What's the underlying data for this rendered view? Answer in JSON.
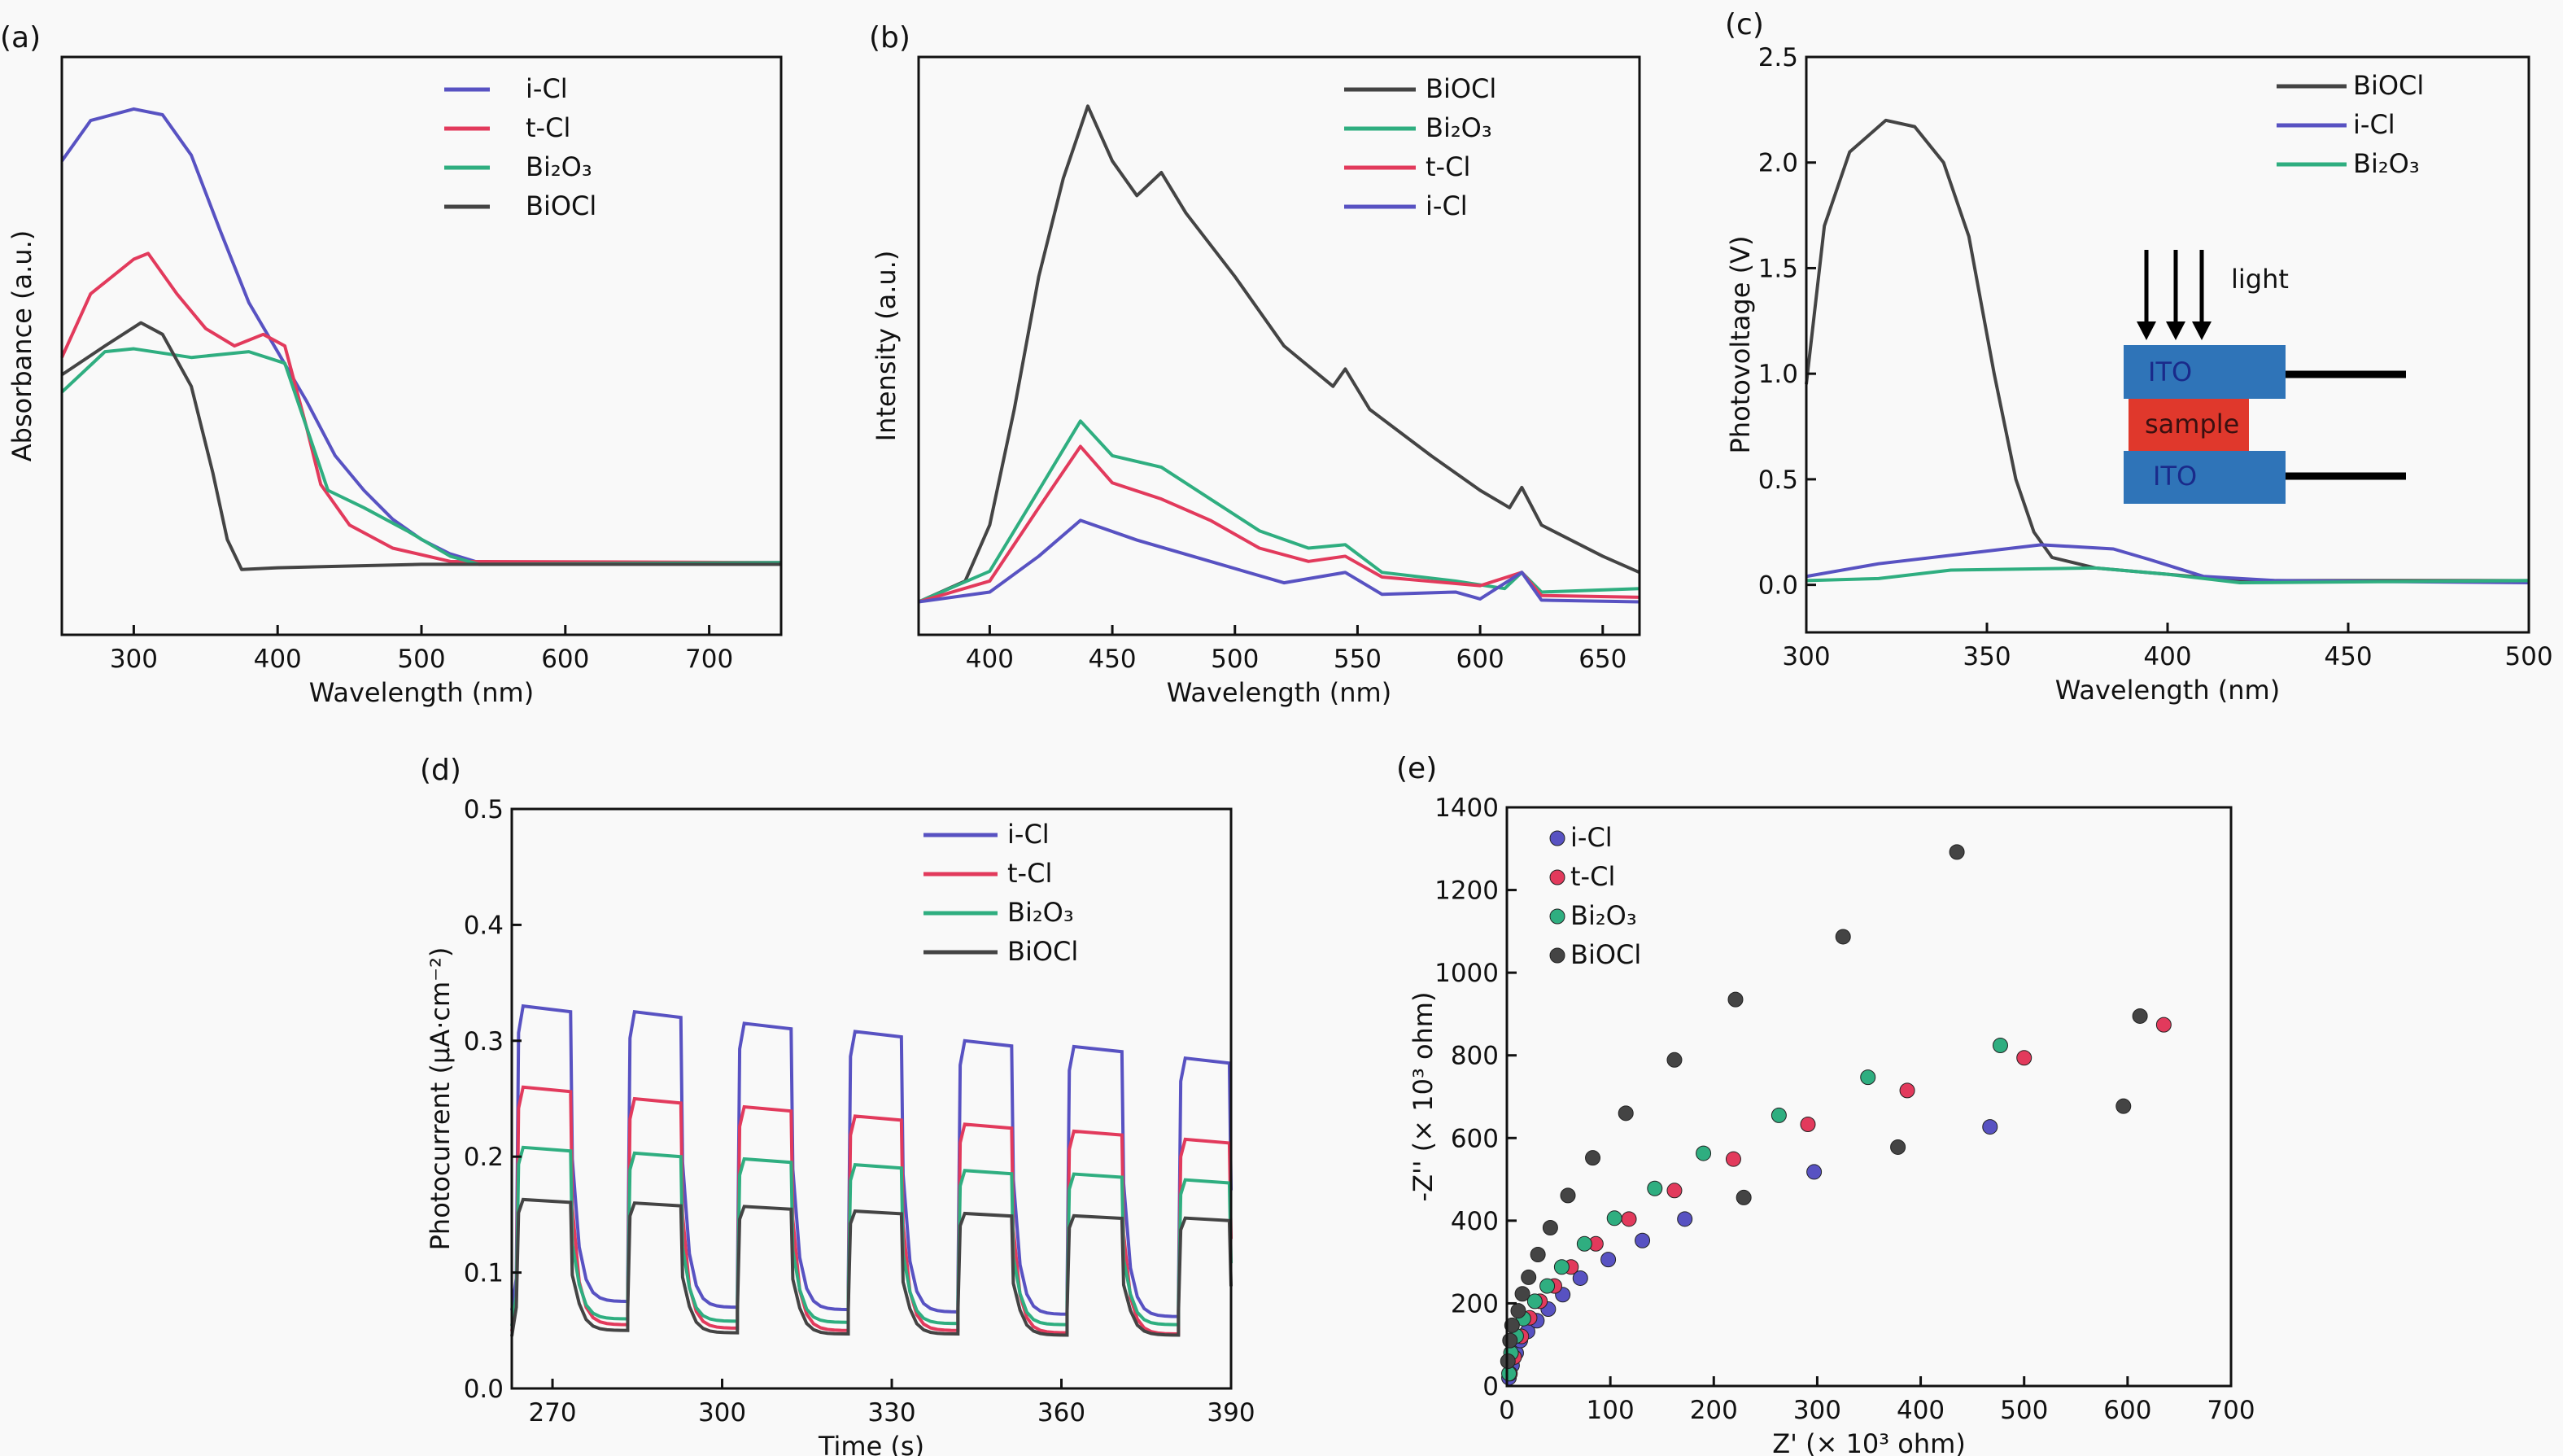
{
  "colors": {
    "i-Cl": "#5852c2",
    "t-Cl": "#e23a5c",
    "Bi2O3": "#2fae80",
    "BiOCl": "#444444"
  },
  "chart_data": [
    {
      "panel": "(a)",
      "type": "line",
      "xlabel": "Wavelength (nm)",
      "ylabel": "Absorbance (a.u.)",
      "xlim": [
        250,
        750
      ],
      "ylim": [
        0,
        1
      ],
      "xticks": [
        300,
        400,
        500,
        600,
        700
      ],
      "yticks": [],
      "legend_position": "top-center",
      "series": [
        {
          "name": "i-Cl",
          "key": "i-Cl",
          "x": [
            250,
            270,
            300,
            320,
            340,
            360,
            380,
            400,
            420,
            440,
            460,
            480,
            500,
            520,
            540,
            750
          ],
          "y": [
            0.82,
            0.89,
            0.91,
            0.9,
            0.83,
            0.7,
            0.575,
            0.49,
            0.405,
            0.31,
            0.25,
            0.2,
            0.165,
            0.14,
            0.125,
            0.125
          ]
        },
        {
          "name": "t-Cl",
          "key": "t-Cl",
          "x": [
            250,
            270,
            300,
            310,
            330,
            350,
            370,
            390,
            405,
            420,
            430,
            450,
            480,
            520,
            750
          ],
          "y": [
            0.48,
            0.59,
            0.65,
            0.66,
            0.59,
            0.53,
            0.5,
            0.52,
            0.5,
            0.36,
            0.26,
            0.19,
            0.15,
            0.127,
            0.125
          ]
        },
        {
          "name": "Bi₂O₃",
          "key": "Bi2O3",
          "x": [
            250,
            280,
            300,
            340,
            380,
            405,
            420,
            435,
            460,
            490,
            520,
            540,
            750
          ],
          "y": [
            0.42,
            0.49,
            0.495,
            0.48,
            0.49,
            0.47,
            0.36,
            0.25,
            0.22,
            0.18,
            0.136,
            0.122,
            0.125
          ]
        },
        {
          "name": "BiOCl",
          "key": "BiOCl",
          "x": [
            250,
            280,
            305,
            320,
            340,
            355,
            365,
            375,
            400,
            500,
            750
          ],
          "y": [
            0.45,
            0.5,
            0.54,
            0.52,
            0.43,
            0.28,
            0.165,
            0.113,
            0.116,
            0.122,
            0.122
          ]
        }
      ]
    },
    {
      "panel": "(b)",
      "type": "line",
      "xlabel": "Wavelength (nm)",
      "ylabel": "Intensity (a.u.)",
      "xlim": [
        371,
        665
      ],
      "ylim": [
        0,
        1
      ],
      "xticks": [
        400,
        450,
        500,
        550,
        600,
        650
      ],
      "yticks": [],
      "legend_position": "top-right",
      "series": [
        {
          "name": "BiOCl",
          "key": "BiOCl",
          "x": [
            371,
            390,
            400,
            410,
            420,
            430,
            440,
            450,
            460,
            470,
            480,
            500,
            520,
            540,
            545,
            555,
            580,
            600,
            612,
            617,
            625,
            650,
            665
          ],
          "y": [
            0.057,
            0.093,
            0.19,
            0.39,
            0.62,
            0.79,
            0.915,
            0.82,
            0.76,
            0.8,
            0.73,
            0.62,
            0.5,
            0.43,
            0.46,
            0.39,
            0.31,
            0.25,
            0.22,
            0.255,
            0.19,
            0.136,
            0.108
          ]
        },
        {
          "name": "Bi₂O₃",
          "key": "Bi2O3",
          "x": [
            371,
            400,
            420,
            437,
            450,
            470,
            490,
            510,
            530,
            545,
            560,
            590,
            610,
            617,
            625,
            665
          ],
          "y": [
            0.057,
            0.11,
            0.25,
            0.37,
            0.31,
            0.29,
            0.235,
            0.18,
            0.15,
            0.156,
            0.108,
            0.093,
            0.08,
            0.108,
            0.074,
            0.08
          ]
        },
        {
          "name": "t-Cl",
          "key": "t-Cl",
          "x": [
            371,
            400,
            420,
            437,
            450,
            470,
            490,
            510,
            530,
            545,
            560,
            600,
            617,
            625,
            665
          ],
          "y": [
            0.057,
            0.093,
            0.22,
            0.326,
            0.263,
            0.235,
            0.198,
            0.15,
            0.127,
            0.136,
            0.1,
            0.085,
            0.108,
            0.068,
            0.065
          ]
        },
        {
          "name": "i-Cl",
          "key": "i-Cl",
          "x": [
            371,
            400,
            420,
            437,
            460,
            490,
            520,
            545,
            560,
            590,
            600,
            617,
            625,
            665
          ],
          "y": [
            0.057,
            0.074,
            0.136,
            0.198,
            0.164,
            0.127,
            0.09,
            0.108,
            0.07,
            0.074,
            0.062,
            0.108,
            0.06,
            0.057
          ]
        }
      ]
    },
    {
      "panel": "(c)",
      "type": "line",
      "xlabel": "Wavelength (nm)",
      "ylabel": "Photovoltage (V)",
      "xlim": [
        300,
        500
      ],
      "ylim": [
        -0.225,
        2.5
      ],
      "xticks": [
        300,
        350,
        400,
        450,
        500
      ],
      "yticks": [
        0.0,
        0.5,
        1.0,
        1.5,
        2.0,
        2.5
      ],
      "ytick_labels": [
        "0.0",
        "0.5",
        "1.0",
        "1.5",
        "2.0",
        "2.5"
      ],
      "legend_position": "top-right",
      "series": [
        {
          "name": "BiOCl",
          "key": "BiOCl",
          "x": [
            300,
            305,
            312,
            322,
            330,
            338,
            345,
            352,
            358,
            363,
            368,
            380,
            400,
            420,
            500
          ],
          "y": [
            0.95,
            1.7,
            2.05,
            2.2,
            2.17,
            2.0,
            1.65,
            1.0,
            0.5,
            0.25,
            0.13,
            0.08,
            0.05,
            0.02,
            0.02
          ]
        },
        {
          "name": "i-Cl",
          "key": "i-Cl",
          "x": [
            300,
            320,
            350,
            365,
            385,
            395,
            410,
            430,
            500
          ],
          "y": [
            0.04,
            0.1,
            0.16,
            0.19,
            0.17,
            0.12,
            0.04,
            0.02,
            0.01
          ]
        },
        {
          "name": "Bi₂O₃",
          "key": "Bi2O3",
          "x": [
            300,
            320,
            340,
            380,
            400,
            420,
            500
          ],
          "y": [
            0.02,
            0.03,
            0.07,
            0.08,
            0.05,
            0.01,
            0.02
          ]
        }
      ],
      "inset": {
        "light_label": "light",
        "top_electrode": "ITO",
        "sample": "sample",
        "bottom_electrode": "ITO",
        "electrode_color": "#2f74b8",
        "sample_color": "#e0382c"
      }
    },
    {
      "panel": "(d)",
      "type": "line",
      "xlabel": "Time (s)",
      "ylabel": "Photocurrent (μA·cm⁻²)",
      "xlim": [
        262.8,
        390
      ],
      "ylim": [
        0,
        0.5
      ],
      "xticks": [
        270,
        300,
        330,
        360,
        390
      ],
      "yticks": [
        0.0,
        0.1,
        0.2,
        0.3,
        0.4,
        0.5
      ],
      "ytick_labels": [
        "0.0",
        "0.1",
        "0.2",
        "0.3",
        "0.4",
        "0.5"
      ],
      "legend_position": "top-right",
      "light_on": [
        263.6,
        283.3,
        302.7,
        322.3,
        341.7,
        361,
        380.7
      ],
      "light_off": [
        273.5,
        293,
        312.5,
        332,
        351.5,
        371,
        390
      ],
      "series": [
        {
          "name": "i-Cl",
          "key": "i-Cl",
          "on_levels": [
            0.33,
            0.325,
            0.315,
            0.308,
            0.3,
            0.295,
            0.285
          ],
          "off_levels": [
            0.075,
            0.07,
            0.068,
            0.066,
            0.064,
            0.062,
            0.06
          ]
        },
        {
          "name": "t-Cl",
          "key": "t-Cl",
          "on_levels": [
            0.26,
            0.25,
            0.243,
            0.235,
            0.228,
            0.222,
            0.215
          ],
          "off_levels": [
            0.055,
            0.052,
            0.05,
            0.05,
            0.048,
            0.047,
            0.047
          ]
        },
        {
          "name": "Bi₂O₃",
          "key": "Bi2O3",
          "on_levels": [
            0.208,
            0.203,
            0.198,
            0.193,
            0.188,
            0.185,
            0.18
          ],
          "off_levels": [
            0.06,
            0.058,
            0.057,
            0.056,
            0.055,
            0.055,
            0.054
          ]
        },
        {
          "name": "BiOCl",
          "key": "BiOCl",
          "on_levels": [
            0.163,
            0.16,
            0.157,
            0.153,
            0.151,
            0.149,
            0.147
          ],
          "off_levels": [
            0.05,
            0.048,
            0.047,
            0.047,
            0.046,
            0.046,
            0.046
          ]
        }
      ]
    },
    {
      "panel": "(e)",
      "type": "scatter",
      "xlabel": "Z' (× 10³ ohm)",
      "ylabel": "-Z'' (× 10³ ohm)",
      "xlim": [
        0,
        700
      ],
      "ylim": [
        0,
        1400
      ],
      "xticks": [
        0,
        100,
        200,
        300,
        400,
        500,
        600,
        700
      ],
      "yticks": [
        0,
        200,
        400,
        600,
        800,
        1000,
        1200,
        1400
      ],
      "legend_position": "top-left",
      "series": [
        {
          "name": "i-Cl",
          "key": "i-Cl",
          "x": [
            2,
            5,
            9,
            13,
            20,
            29,
            40,
            54,
            71,
            98,
            131,
            172,
            297,
            467
          ],
          "y": [
            20,
            50,
            80,
            110,
            132,
            158,
            186,
            221,
            261,
            306,
            352,
            404,
            518,
            627
          ]
        },
        {
          "name": "t-Cl",
          "key": "t-Cl",
          "x": [
            3,
            7,
            14,
            22,
            32,
            46,
            62,
            86,
            118,
            162,
            219,
            291,
            387,
            500,
            635
          ],
          "y": [
            30,
            70,
            120,
            165,
            205,
            242,
            288,
            344,
            404,
            473,
            549,
            633,
            715,
            794,
            874
          ]
        },
        {
          "name": "Bi₂O₃",
          "key": "Bi2O3",
          "x": [
            2,
            4,
            9,
            16,
            27,
            39,
            53,
            75,
            104,
            143,
            190,
            263,
            349,
            477
          ],
          "y": [
            30,
            80,
            121,
            163,
            205,
            242,
            288,
            344,
            406,
            478,
            563,
            655,
            747,
            824
          ]
        },
        {
          "name": "BiOCl",
          "key": "BiOCl",
          "x": [
            1,
            3,
            5,
            11,
            15,
            21,
            30,
            42,
            59,
            83,
            115,
            162,
            221,
            325,
            435,
            229,
            378,
            596,
            612
          ],
          "y": [
            60,
            110,
            147,
            182,
            223,
            263,
            318,
            383,
            461,
            552,
            660,
            789,
            935,
            1087,
            1292,
            456,
            578,
            677,
            895
          ]
        }
      ]
    }
  ]
}
